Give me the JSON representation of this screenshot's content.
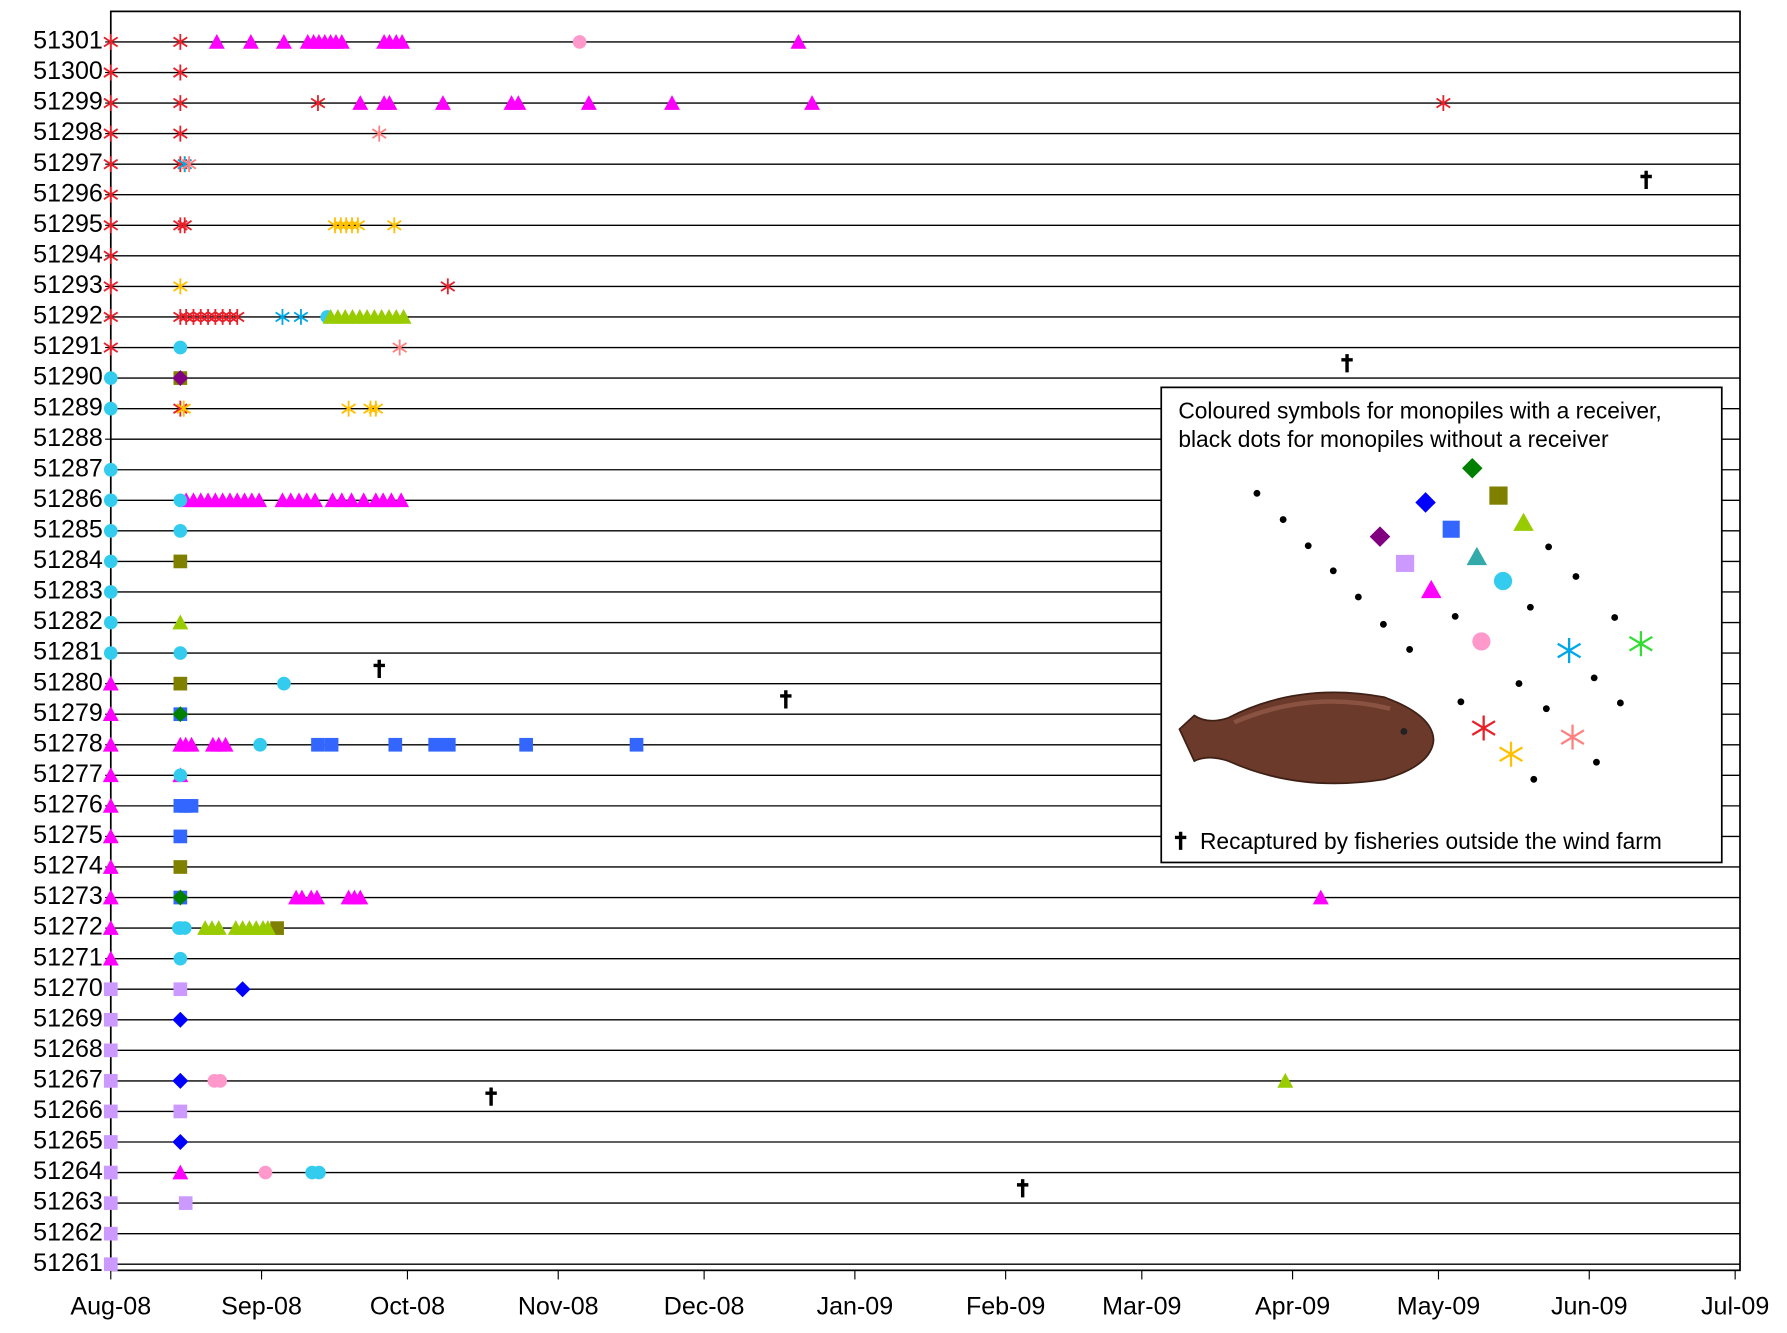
{
  "chart_data": {
    "type": "scatter",
    "xlim": [
      0,
      335
    ],
    "xticks": [
      {
        "value": 0,
        "label": "Aug-08"
      },
      {
        "value": 31,
        "label": "Sep-08"
      },
      {
        "value": 61,
        "label": "Oct-08"
      },
      {
        "value": 92,
        "label": "Nov-08"
      },
      {
        "value": 122,
        "label": "Dec-08"
      },
      {
        "value": 153,
        "label": "Jan-09"
      },
      {
        "value": 184,
        "label": "Feb-09"
      },
      {
        "value": 212,
        "label": "Mar-09"
      },
      {
        "value": 243,
        "label": "Apr-09"
      },
      {
        "value": 273,
        "label": "May-09"
      },
      {
        "value": 304,
        "label": "Jun-09"
      },
      {
        "value": 334,
        "label": "Jul-09"
      }
    ],
    "ylim": [
      51260.8,
      51302
    ],
    "yticks": [
      51261,
      51262,
      51263,
      51264,
      51265,
      51266,
      51267,
      51268,
      51269,
      51270,
      51271,
      51272,
      51273,
      51274,
      51275,
      51276,
      51277,
      51278,
      51279,
      51280,
      51281,
      51282,
      51283,
      51284,
      51285,
      51286,
      51287,
      51288,
      51289,
      51290,
      51291,
      51292,
      51293,
      51294,
      51295,
      51296,
      51297,
      51298,
      51299,
      51300,
      51301
    ],
    "grid": true,
    "annotations": [
      "Coloured symbols for monopiles with a receiver,",
      "black dots for monopiles without a receiver",
      "Recaptured by fisheries outside the wind farm"
    ],
    "series": [
      {
        "color": "#e8202a",
        "marker": "asterisk",
        "x": [
          0,
          0,
          0,
          0,
          0,
          0,
          0,
          0,
          0,
          0,
          0,
          14.3,
          14.3,
          14.3,
          14.3,
          14.3,
          14.3,
          14.3,
          14.3,
          42.6,
          274,
          69.3,
          15.5,
          17,
          18.5,
          20,
          21.5,
          23,
          24.5,
          26,
          15.2
        ],
        "values": [
          51301,
          51300,
          51299,
          51298,
          51297,
          51296,
          51295,
          51294,
          51293,
          51292,
          51291,
          51301,
          51300,
          51299,
          51298,
          51297,
          51295,
          51292,
          51289,
          51299,
          51299,
          51293,
          51292,
          51292,
          51292,
          51292,
          51292,
          51292,
          51292,
          51292,
          51295
        ]
      },
      {
        "color": "#ff00ff",
        "marker": "triangle",
        "x": [
          21.8,
          28.8,
          35.6,
          40.5,
          41.7,
          42.8,
          44,
          45.2,
          46.3,
          47.5,
          56.2,
          57.3,
          58.7,
          59.9,
          141.4,
          51.3,
          56.2,
          57.3,
          68.3,
          82.4,
          83.8,
          98.3,
          115.4,
          144.2,
          15.5,
          17,
          18.5,
          20,
          21.5,
          23,
          24.5,
          26,
          27.5,
          29,
          30.5,
          35.3,
          37,
          38.7,
          40.3,
          42,
          45.6,
          47.5,
          49.5,
          52,
          54.5,
          56,
          57.7,
          59.7,
          0,
          0,
          0,
          0,
          0,
          0,
          0,
          0,
          0,
          0,
          14.3,
          15.4,
          16.6,
          21,
          22.2,
          23.6,
          14.3,
          14.3,
          38.1,
          39.3,
          41.2,
          42.4,
          48.9,
          50.1,
          51.3,
          248.8
        ],
        "values": [
          51301,
          51301,
          51301,
          51301,
          51301,
          51301,
          51301,
          51301,
          51301,
          51301,
          51301,
          51301,
          51301,
          51301,
          51301,
          51299,
          51299,
          51299,
          51299,
          51299,
          51299,
          51299,
          51299,
          51299,
          51286,
          51286,
          51286,
          51286,
          51286,
          51286,
          51286,
          51286,
          51286,
          51286,
          51286,
          51286,
          51286,
          51286,
          51286,
          51286,
          51286,
          51286,
          51286,
          51286,
          51286,
          51286,
          51286,
          51286,
          51280,
          51279,
          51278,
          51277,
          51276,
          51275,
          51274,
          51273,
          51272,
          51271,
          51278,
          51278,
          51278,
          51278,
          51278,
          51278,
          51277,
          51264,
          51273,
          51273,
          51273,
          51273,
          51273,
          51273,
          51273,
          51273
        ]
      },
      {
        "color": "#33ccee",
        "marker": "circle",
        "x": [
          0,
          0,
          0,
          0,
          0,
          0,
          0,
          0,
          0,
          14.3,
          14.3,
          14.3,
          14.3,
          14.3,
          14.3,
          14.3,
          35.6,
          30.7,
          14,
          15.2,
          41.4,
          42.8,
          44.5
        ],
        "values": [
          51290,
          51289,
          51287,
          51286,
          51285,
          51284,
          51283,
          51282,
          51281,
          51291,
          51286,
          51285,
          51281,
          51277,
          51272,
          51271,
          51280,
          51278,
          51272,
          51272,
          51264,
          51264,
          51292
        ]
      },
      {
        "color": "#ff99cc",
        "marker": "circle",
        "x": [
          96.4,
          21.3,
          22.5,
          31.8
        ],
        "values": [
          51301,
          51267,
          51267,
          51264
        ]
      },
      {
        "color": "#ffc000",
        "marker": "asterisk",
        "x": [
          46.1,
          47.3,
          48.4,
          49.6,
          50.8,
          58.3,
          14.3,
          48.9,
          53.4,
          54.5,
          15,
          15.2
        ],
        "values": [
          51295,
          51295,
          51295,
          51295,
          51295,
          51295,
          51293,
          51289,
          51289,
          51289,
          51289,
          51297
        ]
      },
      {
        "color": "#00a8e8",
        "marker": "asterisk",
        "x": [
          15.2,
          35.3,
          39.1
        ],
        "values": [
          51297,
          51292,
          51292
        ]
      },
      {
        "color": "#ff8080",
        "marker": "asterisk",
        "x": [
          55.2,
          16.1,
          59.4
        ],
        "values": [
          51298,
          51297,
          51291
        ]
      },
      {
        "color": "#808000",
        "marker": "square",
        "x": [
          14.3,
          14.3,
          14.3,
          14.3,
          34.2
        ],
        "values": [
          51290,
          51284,
          51280,
          51274,
          51272
        ]
      },
      {
        "color": "#3366ff",
        "marker": "square",
        "x": [
          42.6,
          45.4,
          58.5,
          66.7,
          69.5,
          85.4,
          108.1,
          14.3,
          15.4,
          16.6,
          14.3,
          14.3,
          14.3
        ],
        "values": [
          51278,
          51278,
          51278,
          51278,
          51278,
          51278,
          51278,
          51276,
          51276,
          51276,
          51275,
          51279,
          51273
        ]
      },
      {
        "color": "#99cc00",
        "marker": "triangle",
        "x": [
          45.2,
          46.7,
          48.2,
          49.7,
          51.2,
          52.7,
          54.2,
          55.7,
          57.2,
          58.7,
          60.2,
          14.3,
          19.4,
          20.8,
          22.2,
          25.7,
          27.1,
          28.5,
          29.9,
          31.3,
          32.3,
          241.5
        ],
        "values": [
          51292,
          51292,
          51292,
          51292,
          51292,
          51292,
          51292,
          51292,
          51292,
          51292,
          51292,
          51282,
          51272,
          51272,
          51272,
          51272,
          51272,
          51272,
          51272,
          51272,
          51272,
          51267
        ]
      },
      {
        "color": "#cc99ff",
        "marker": "square",
        "x": [
          0,
          0,
          0,
          0,
          0,
          0,
          0,
          0,
          0,
          0,
          14.3,
          14.3,
          15.4
        ],
        "values": [
          51270,
          51269,
          51268,
          51267,
          51266,
          51265,
          51264,
          51263,
          51262,
          51261,
          51270,
          51266,
          51263
        ]
      },
      {
        "color": "#0000ff",
        "marker": "diamond",
        "x": [
          27.1,
          14.3,
          14.3,
          14.3
        ],
        "values": [
          51270,
          51269,
          51267,
          51265
        ]
      },
      {
        "color": "#008000",
        "marker": "diamond",
        "x": [
          14.3,
          14.3
        ],
        "values": [
          51279,
          51273
        ]
      },
      {
        "color": "#800080",
        "marker": "diamond",
        "x": [
          14.3
        ],
        "values": [
          51290
        ]
      },
      {
        "color": "#000000",
        "marker": "dagger",
        "x": [
          315.7,
          254.2,
          55.2,
          138.8,
          78.2,
          187.5
        ],
        "values": [
          51296,
          51290,
          51280,
          51279,
          51266,
          51263
        ]
      }
    ]
  }
}
